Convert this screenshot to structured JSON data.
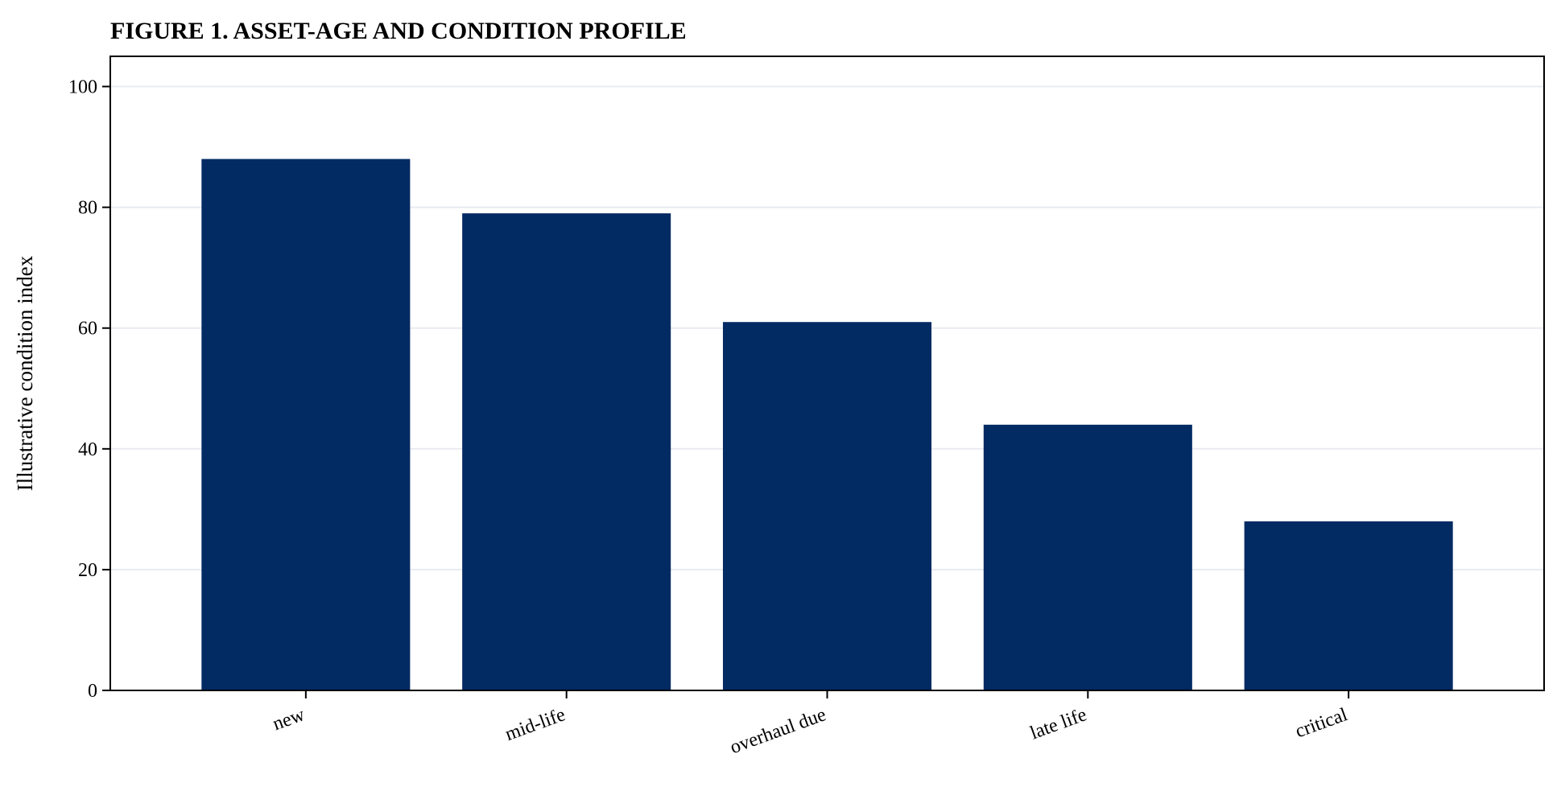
{
  "chart_data": {
    "type": "bar",
    "title": "FIGURE 1. ASSET-AGE AND CONDITION PROFILE",
    "xlabel": "",
    "ylabel": "Illustrative condition index",
    "categories": [
      "new",
      "mid-life",
      "overhaul due",
      "late life",
      "critical"
    ],
    "values": [
      88,
      79,
      61,
      44,
      28
    ],
    "ylim": [
      0,
      105
    ],
    "yticks": [
      0,
      20,
      40,
      60,
      80,
      100
    ],
    "grid": true,
    "legend": false
  },
  "colors": {
    "bar": "#022A63",
    "grid": "#E8EBF0",
    "axis": "#000000"
  }
}
